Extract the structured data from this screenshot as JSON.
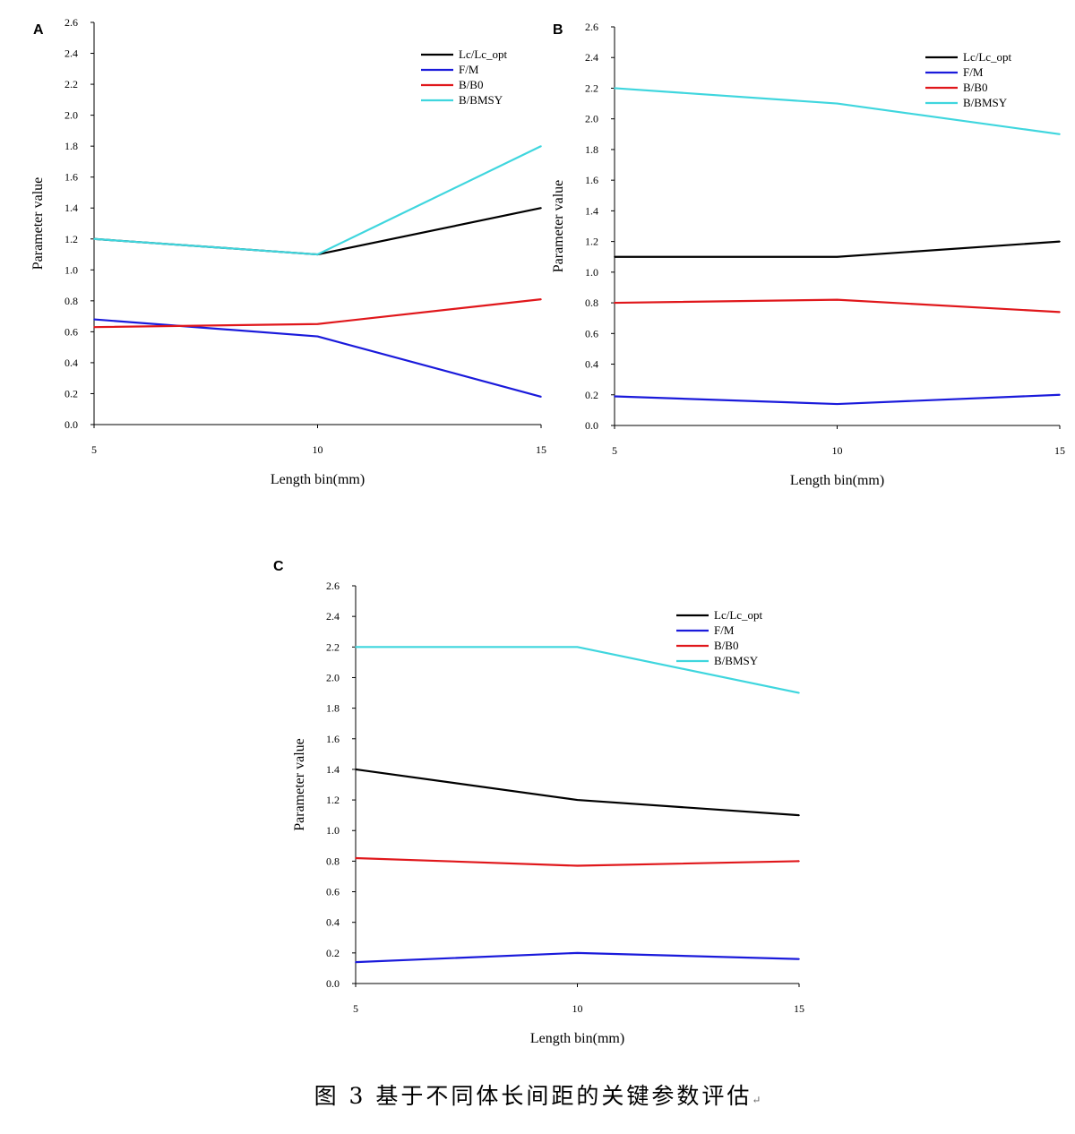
{
  "caption": "图 3  基于不同体长间距的关键参数评估",
  "caption_mark": "↵",
  "chart_data": [
    {
      "panel": "A",
      "type": "line",
      "xlabel": "Length bin(mm)",
      "ylabel": "Parameter value",
      "x": [
        5,
        10,
        15
      ],
      "xticks": [
        "5",
        "10",
        "15"
      ],
      "ylim": [
        0,
        2.6
      ],
      "yticks": [
        "0.0",
        "0.2",
        "0.4",
        "0.6",
        "0.8",
        "1.0",
        "1.2",
        "1.4",
        "1.6",
        "1.8",
        "2.0",
        "2.2",
        "2.4",
        "2.6"
      ],
      "grid": false,
      "legend": "top-right",
      "series": [
        {
          "name": "Lc/Lc_opt",
          "color": "#000000",
          "values": [
            1.2,
            1.1,
            1.4
          ]
        },
        {
          "name": "F/M",
          "color": "#1a1adb",
          "values": [
            0.68,
            0.57,
            0.18
          ]
        },
        {
          "name": "B/B0",
          "color": "#e0171b",
          "values": [
            0.63,
            0.65,
            0.81
          ]
        },
        {
          "name": "B/BMSY",
          "color": "#3fd6de",
          "values": [
            1.2,
            1.1,
            1.8
          ]
        }
      ]
    },
    {
      "panel": "B",
      "type": "line",
      "xlabel": "Length bin(mm)",
      "ylabel": "Parameter value",
      "x": [
        5,
        10,
        15
      ],
      "xticks": [
        "5",
        "10",
        "15"
      ],
      "ylim": [
        0,
        2.6
      ],
      "yticks": [
        "0.0",
        "0.2",
        "0.4",
        "0.6",
        "0.8",
        "1.0",
        "1.2",
        "1.4",
        "1.6",
        "1.8",
        "2.0",
        "2.2",
        "2.4",
        "2.6"
      ],
      "grid": false,
      "legend": "top-right",
      "series": [
        {
          "name": "Lc/Lc_opt",
          "color": "#000000",
          "values": [
            1.1,
            1.1,
            1.2
          ]
        },
        {
          "name": "F/M",
          "color": "#1a1adb",
          "values": [
            0.19,
            0.14,
            0.2
          ]
        },
        {
          "name": "B/B0",
          "color": "#e0171b",
          "values": [
            0.8,
            0.82,
            0.74
          ]
        },
        {
          "name": "B/BMSY",
          "color": "#3fd6de",
          "values": [
            2.2,
            2.1,
            1.9
          ]
        }
      ]
    },
    {
      "panel": "C",
      "type": "line",
      "xlabel": "Length bin(mm)",
      "ylabel": "Parameter value",
      "x": [
        5,
        10,
        15
      ],
      "xticks": [
        "5",
        "10",
        "15"
      ],
      "ylim": [
        0,
        2.6
      ],
      "yticks": [
        "0.0",
        "0.2",
        "0.4",
        "0.6",
        "0.8",
        "1.0",
        "1.2",
        "1.4",
        "1.6",
        "1.8",
        "2.0",
        "2.2",
        "2.4",
        "2.6"
      ],
      "grid": false,
      "legend": "top-right",
      "series": [
        {
          "name": "Lc/Lc_opt",
          "color": "#000000",
          "values": [
            1.4,
            1.2,
            1.1
          ]
        },
        {
          "name": "F/M",
          "color": "#1a1adb",
          "values": [
            0.14,
            0.2,
            0.16
          ]
        },
        {
          "name": "B/B0",
          "color": "#e0171b",
          "values": [
            0.82,
            0.77,
            0.8
          ]
        },
        {
          "name": "B/BMSY",
          "color": "#3fd6de",
          "values": [
            2.2,
            2.2,
            1.9
          ]
        }
      ]
    }
  ]
}
